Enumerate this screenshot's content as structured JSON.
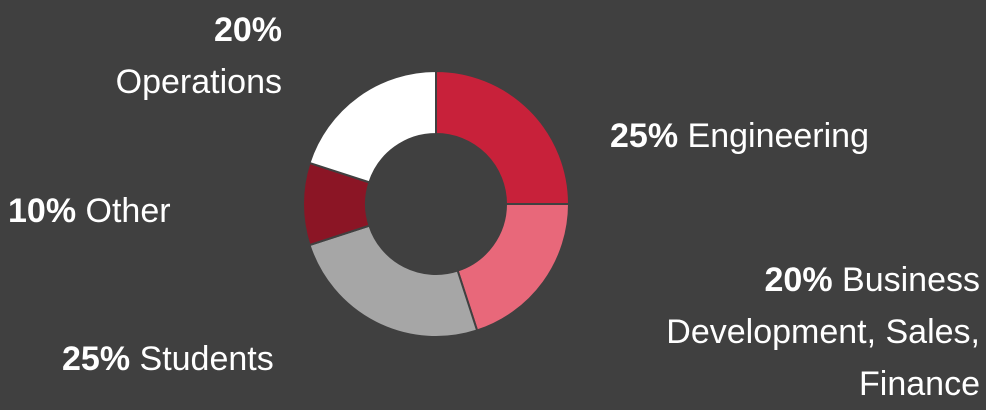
{
  "chart_data": {
    "type": "donut",
    "categories": [
      "Engineering",
      "Business Development, Sales, Finance",
      "Students",
      "Other",
      "Operations"
    ],
    "values": [
      25,
      20,
      25,
      10,
      20
    ],
    "value_labels": [
      "25%",
      "20%",
      "25%",
      "10%",
      "20%"
    ],
    "colors": [
      "#c8213a",
      "#e8687a",
      "#a6a6a6",
      "#8b1525",
      "#ffffff"
    ]
  }
}
